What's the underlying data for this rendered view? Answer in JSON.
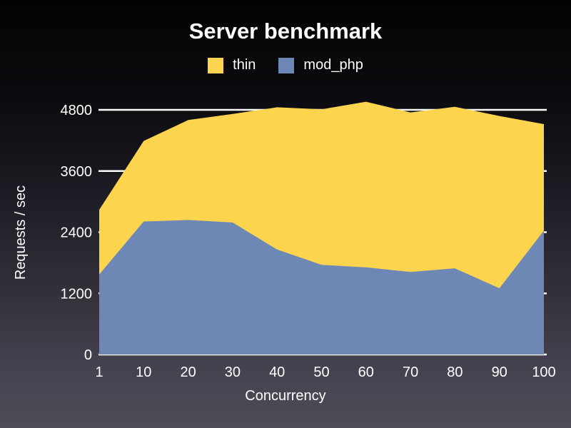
{
  "title": "Server benchmark",
  "legend": [
    {
      "label": "thin",
      "color": "#fcd44e",
      "swatch_icon": "legend-swatch"
    },
    {
      "label": "mod_php",
      "color": "#6d88b5",
      "swatch_icon": "legend-swatch"
    }
  ],
  "chart_data": {
    "type": "area",
    "overlapping": true,
    "title": "Server benchmark",
    "xlabel": "Concurrency",
    "ylabel": "Requests / sec",
    "categories": [
      1,
      10,
      20,
      30,
      40,
      50,
      60,
      70,
      80,
      90,
      100
    ],
    "series": [
      {
        "name": "thin",
        "color": "#fcd44e",
        "values": [
          2840,
          4190,
          4600,
          4720,
          4850,
          4810,
          4960,
          4750,
          4860,
          4680,
          4520
        ]
      },
      {
        "name": "mod_php",
        "color": "#6d88b5",
        "values": [
          1570,
          2610,
          2640,
          2590,
          2060,
          1760,
          1710,
          1620,
          1690,
          1300,
          2430
        ]
      }
    ],
    "y_ticks": [
      0,
      1200,
      2400,
      3600,
      4800
    ],
    "ylim": [
      0,
      4800
    ],
    "grid": true,
    "gridline_color": "#ffffff",
    "text_color": "#ffffff",
    "legend_position": "top-center",
    "background": {
      "top": "#030304",
      "bottom": "#4f4c57"
    }
  }
}
